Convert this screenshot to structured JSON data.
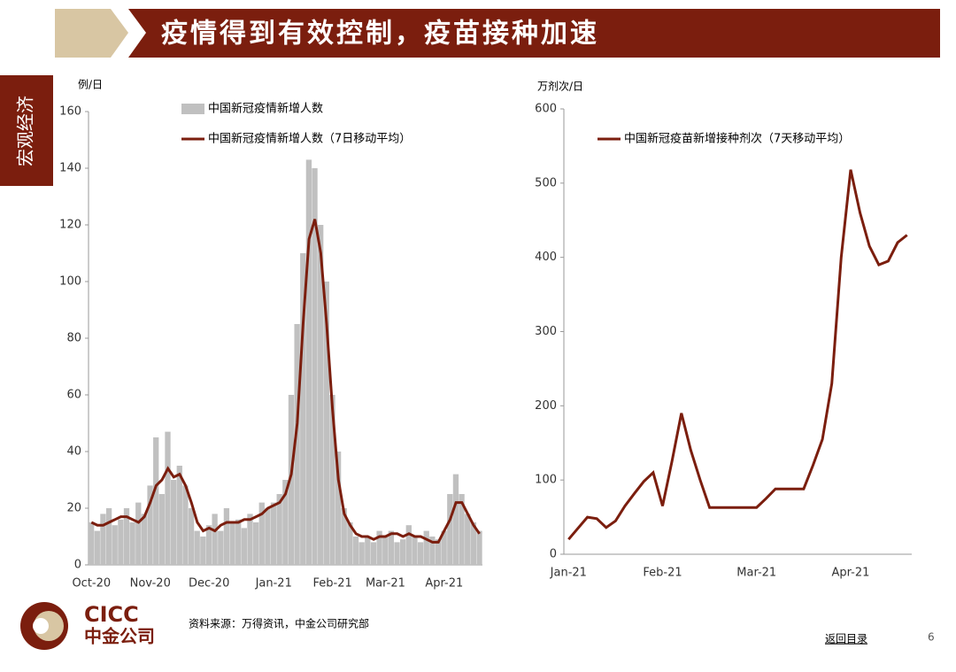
{
  "header": {
    "title": "疫情得到有效控制，疫苗接种加速"
  },
  "sidebar": "宏观经济",
  "chart_data": [
    {
      "type": "combo",
      "y_label": "例/日",
      "categories": [
        "Oct-20",
        null,
        null,
        null,
        null,
        null,
        null,
        null,
        null,
        null,
        "Nov-20",
        null,
        null,
        null,
        null,
        null,
        null,
        null,
        null,
        null,
        "Dec-20",
        null,
        null,
        null,
        null,
        null,
        null,
        null,
        null,
        null,
        null,
        "Jan-21",
        null,
        null,
        null,
        null,
        null,
        null,
        null,
        null,
        null,
        "Feb-21",
        null,
        null,
        null,
        null,
        null,
        null,
        null,
        null,
        "Mar-21",
        null,
        null,
        null,
        null,
        null,
        null,
        null,
        null,
        null,
        "Apr-21",
        null,
        null,
        null,
        null,
        null,
        null
      ],
      "series": [
        {
          "name": "中国新冠疫情新增人数",
          "type": "bar",
          "color": "#c0c0c0",
          "values": [
            15,
            12,
            18,
            20,
            14,
            16,
            20,
            15,
            22,
            18,
            28,
            45,
            25,
            47,
            30,
            35,
            28,
            20,
            12,
            10,
            14,
            18,
            12,
            20,
            15,
            16,
            13,
            18,
            15,
            22,
            20,
            22,
            25,
            30,
            60,
            85,
            110,
            143,
            140,
            120,
            100,
            60,
            40,
            20,
            15,
            10,
            8,
            10,
            8,
            12,
            10,
            12,
            8,
            9,
            14,
            10,
            8,
            12,
            10,
            9,
            12,
            25,
            32,
            25,
            18,
            15,
            12
          ]
        },
        {
          "name": "中国新冠疫情新增人数（7日移动平均）",
          "type": "line",
          "color": "#7b1e0e",
          "values": [
            15,
            14,
            14,
            15,
            16,
            17,
            17,
            16,
            15,
            17,
            22,
            28,
            30,
            34,
            31,
            32,
            28,
            22,
            15,
            12,
            13,
            12,
            14,
            15,
            15,
            15,
            16,
            16,
            17,
            18,
            20,
            21,
            22,
            25,
            32,
            50,
            85,
            115,
            122,
            110,
            85,
            55,
            30,
            18,
            14,
            11,
            10,
            10,
            9,
            10,
            10,
            11,
            11,
            10,
            11,
            10,
            10,
            9,
            8,
            8,
            12,
            16,
            22,
            22,
            18,
            14,
            11
          ]
        }
      ],
      "ylim": [
        0,
        160
      ],
      "yticks": [
        0,
        20,
        40,
        60,
        80,
        100,
        120,
        140,
        160
      ],
      "grid": false
    },
    {
      "type": "line",
      "y_label": "万剂次/日",
      "categories": [
        "Jan-21",
        null,
        null,
        null,
        null,
        null,
        null,
        null,
        null,
        null,
        "Feb-21",
        null,
        null,
        null,
        null,
        null,
        null,
        null,
        null,
        null,
        "Mar-21",
        null,
        null,
        null,
        null,
        null,
        null,
        null,
        null,
        null,
        "Apr-21",
        null,
        null,
        null,
        null,
        null,
        null
      ],
      "series": [
        {
          "name": "中国新冠疫苗新增接种剂次（7天移动平均）",
          "type": "line",
          "color": "#7b1e0e",
          "values": [
            20,
            35,
            50,
            48,
            36,
            45,
            65,
            82,
            98,
            110,
            65,
            125,
            190,
            140,
            100,
            63,
            63,
            63,
            63,
            63,
            63,
            75,
            88,
            88,
            88,
            88,
            120,
            155,
            230,
            400,
            518,
            460,
            415,
            390,
            395,
            420,
            430
          ]
        }
      ],
      "ylim": [
        0,
        600
      ],
      "yticks": [
        0,
        100,
        200,
        300,
        400,
        500,
        600
      ],
      "grid": false
    }
  ],
  "footer": {
    "logo_en": "CICC",
    "logo_cn": "中金公司",
    "source": "资料来源：万得资讯，中金公司研究部",
    "toc_link": "返回目录",
    "page": "6"
  }
}
